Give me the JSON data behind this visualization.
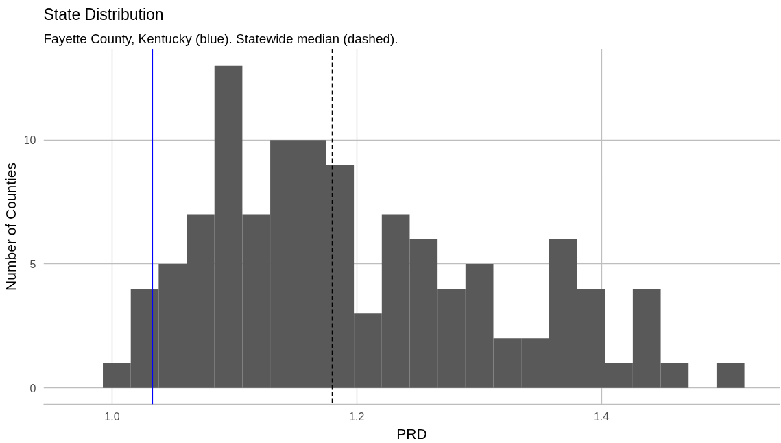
{
  "chart_data": {
    "type": "histogram",
    "title": "State Distribution",
    "subtitle": "Fayette County, Kentucky (blue). Statewide median (dashed).",
    "xlabel": "PRD",
    "ylabel": "Number of Counties",
    "bins": [
      0.9925,
      1.0153,
      1.0381,
      1.0609,
      1.0837,
      1.1065,
      1.1293,
      1.1521,
      1.1749,
      1.1977,
      1.2205,
      1.2433,
      1.2661,
      1.2889,
      1.3117,
      1.3345,
      1.3573,
      1.3801,
      1.4029,
      1.4257,
      1.4485,
      1.4713,
      1.4941,
      1.5169
    ],
    "values": [
      1,
      4,
      5,
      7,
      13,
      7,
      10,
      10,
      9,
      3,
      7,
      6,
      4,
      5,
      2,
      2,
      6,
      4,
      1,
      4,
      1,
      0,
      1
    ],
    "color": "#595959",
    "xlim": [
      0.944,
      1.546
    ],
    "ylim": [
      -0.66,
      13.67
    ],
    "xticks": [
      {
        "value": 1.0,
        "label": "1.0"
      },
      {
        "value": 1.2,
        "label": "1.2"
      },
      {
        "value": 1.4,
        "label": "1.4"
      }
    ],
    "yticks": [
      0,
      5,
      10
    ],
    "grid": true,
    "ref_lines": [
      {
        "axis": "x",
        "value": 1.033,
        "color": "#0000ff",
        "line_style": "solid"
      },
      {
        "axis": "x",
        "value": 1.18,
        "color": "#000000",
        "line_style": "dashed"
      }
    ]
  }
}
